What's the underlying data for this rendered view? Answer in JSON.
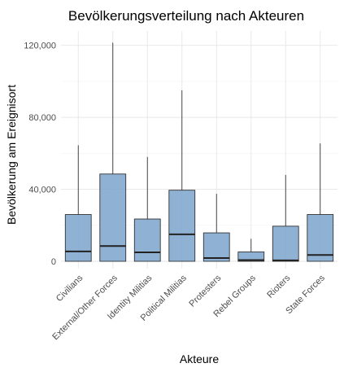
{
  "chart_data": {
    "type": "boxplot",
    "title": "Bevölkerungsverteilung nach Akteuren",
    "xlabel": "Akteure",
    "ylabel": "Bevölkerung am Ereignisort",
    "ylim": [
      0,
      128000
    ],
    "yticks": [
      0,
      40000,
      80000,
      120000
    ],
    "ytick_labels": [
      "0",
      "40,000",
      "80,000",
      "120,000"
    ],
    "grid": true,
    "box_color": "#7ba4cc",
    "categories": [
      "Civilians",
      "External/Other Forces",
      "Identity Militias",
      "Political Militias",
      "Protesters",
      "Rebel Groups",
      "Rioters",
      "State Forces"
    ],
    "boxes": [
      {
        "category": "Civilians",
        "min": 0,
        "q1": 0,
        "median": 5500,
        "q3": 26000,
        "max": 64500
      },
      {
        "category": "External/Other Forces",
        "min": 0,
        "q1": 0,
        "median": 8500,
        "q3": 48500,
        "max": 121500
      },
      {
        "category": "Identity Militias",
        "min": 0,
        "q1": 0,
        "median": 5000,
        "q3": 23500,
        "max": 58000
      },
      {
        "category": "Political Militias",
        "min": 0,
        "q1": 0,
        "median": 15000,
        "q3": 39500,
        "max": 95000
      },
      {
        "category": "Protesters",
        "min": 0,
        "q1": 0,
        "median": 1800,
        "q3": 15800,
        "max": 37500
      },
      {
        "category": "Rebel Groups",
        "min": 0,
        "q1": 0,
        "median": 700,
        "q3": 5200,
        "max": 12500
      },
      {
        "category": "Rioters",
        "min": 0,
        "q1": 0,
        "median": 500,
        "q3": 19500,
        "max": 48000
      },
      {
        "category": "State Forces",
        "min": 0,
        "q1": 0,
        "median": 3500,
        "q3": 26000,
        "max": 65500
      }
    ]
  }
}
